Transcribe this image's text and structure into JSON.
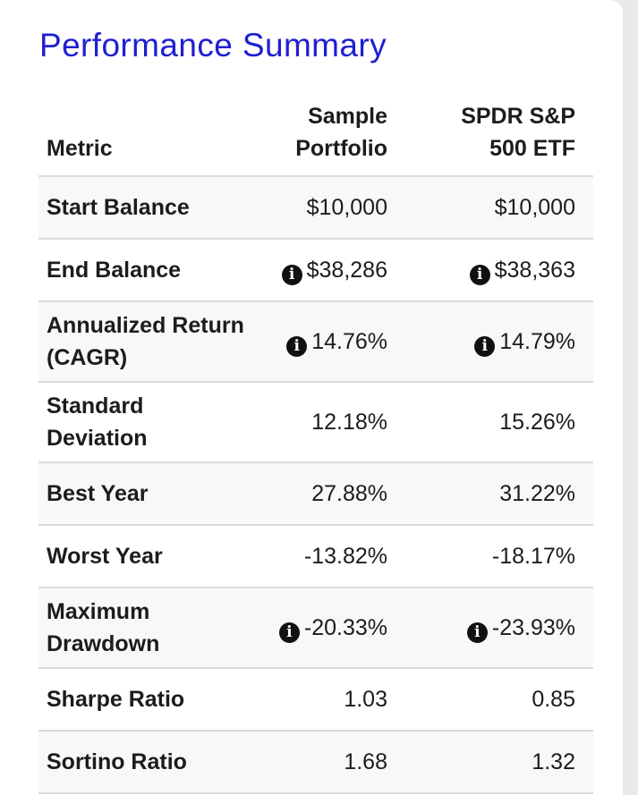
{
  "title": "Performance Summary",
  "columns": {
    "metric": "Metric",
    "portfolio": [
      "Sample",
      "Portfolio"
    ],
    "benchmark": [
      "SPDR S&P",
      "500 ETF"
    ]
  },
  "icons": {
    "info": "info-circle-icon"
  },
  "colors": {
    "title": "#1f1fd1",
    "row_alt": "#f8f8f8",
    "divider": "#dadada"
  },
  "rows": [
    {
      "metric": [
        "Start Balance"
      ],
      "portfolio": "$10,000",
      "benchmark": "$10,000",
      "info": false
    },
    {
      "metric": [
        "End Balance"
      ],
      "portfolio": "$38,286",
      "benchmark": "$38,363",
      "info": true
    },
    {
      "metric": [
        "Annualized Return",
        "(CAGR)"
      ],
      "portfolio": "14.76%",
      "benchmark": "14.79%",
      "info": true
    },
    {
      "metric": [
        "Standard",
        "Deviation"
      ],
      "portfolio": "12.18%",
      "benchmark": "15.26%",
      "info": false
    },
    {
      "metric": [
        "Best Year"
      ],
      "portfolio": "27.88%",
      "benchmark": "31.22%",
      "info": false
    },
    {
      "metric": [
        "Worst Year"
      ],
      "portfolio": "-13.82%",
      "benchmark": "-18.17%",
      "info": false
    },
    {
      "metric": [
        "Maximum",
        "Drawdown"
      ],
      "portfolio": "-20.33%",
      "benchmark": "-23.93%",
      "info": true
    },
    {
      "metric": [
        "Sharpe Ratio"
      ],
      "portfolio": "1.03",
      "benchmark": "0.85",
      "info": false
    },
    {
      "metric": [
        "Sortino Ratio"
      ],
      "portfolio": "1.68",
      "benchmark": "1.32",
      "info": false
    }
  ]
}
